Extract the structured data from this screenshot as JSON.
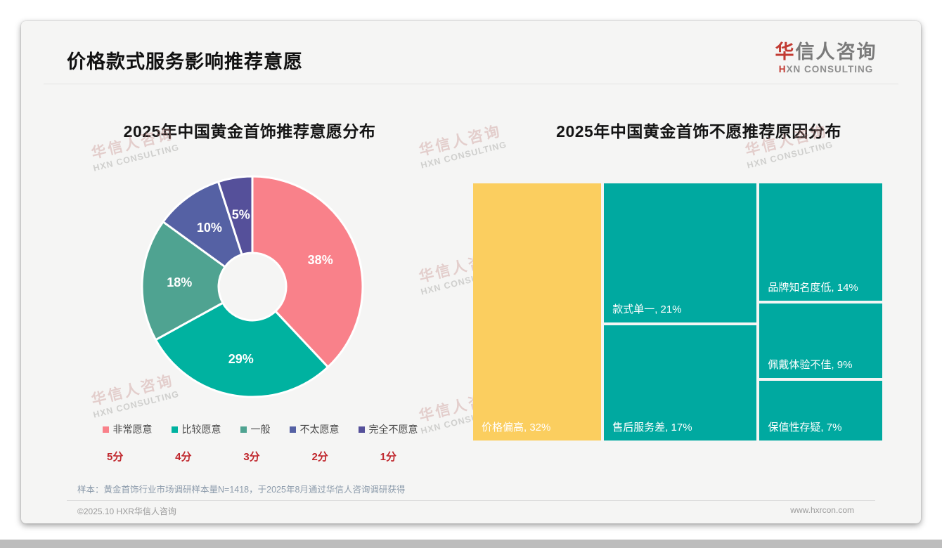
{
  "header": {
    "title": "价格款式服务影响推荐意愿"
  },
  "logo": {
    "cn_accent": "华",
    "cn_rest": "信人咨询",
    "en_accent": "H",
    "en_rest": "XN CONSULTING"
  },
  "watermark": {
    "line1": "华信人咨询",
    "line2": "HXN CONSULTING"
  },
  "footnote": "样本：黄金首饰行业市场调研样本量N=1418，于2025年8月通过华信人咨询调研获得",
  "footer": {
    "left": "©2025.10 HXR华信人咨询",
    "right": "www.hxrcon.com"
  },
  "colors": {
    "card_bg": "#F5F5F4",
    "accent_red": "#C23A32",
    "score_red": "#C0272D",
    "slice_border": "#FFFFFF",
    "treemap_teal": "#00A9A0",
    "treemap_yellow": "#FBCE5F"
  },
  "chart_data": [
    {
      "type": "pie",
      "subtype": "donut",
      "title": "2025年中国黄金首饰推荐意愿分布",
      "categories": [
        "非常愿意",
        "比较愿意",
        "一般",
        "不太愿意",
        "完全不愿意"
      ],
      "values": [
        38,
        29,
        18,
        10,
        5
      ],
      "value_suffix": "%",
      "colors": [
        "#F9818A",
        "#00B2A0",
        "#4FA391",
        "#5561A4",
        "#55509A"
      ],
      "label_color": "#FFFFFF",
      "legend_position": "bottom",
      "score_labels": [
        "5分",
        "4分",
        "3分",
        "2分",
        "1分"
      ]
    },
    {
      "type": "treemap",
      "title": "2025年中国黄金首饰不愿推荐原因分布",
      "items": [
        {
          "label": "价格偏高",
          "value": 32,
          "color": "#FBCE5F"
        },
        {
          "label": "款式单一",
          "value": 21,
          "color": "#00A9A0"
        },
        {
          "label": "售后服务差",
          "value": 17,
          "color": "#00A9A0"
        },
        {
          "label": "品牌知名度低",
          "value": 14,
          "color": "#00A9A0"
        },
        {
          "label": "佩戴体验不佳",
          "value": 9,
          "color": "#00A9A0"
        },
        {
          "label": "保值性存疑",
          "value": 7,
          "color": "#00A9A0"
        }
      ],
      "label_format": "{label}, {value}%",
      "columns": [
        [
          0
        ],
        [
          1,
          2
        ],
        [
          3,
          4,
          5
        ]
      ]
    }
  ]
}
